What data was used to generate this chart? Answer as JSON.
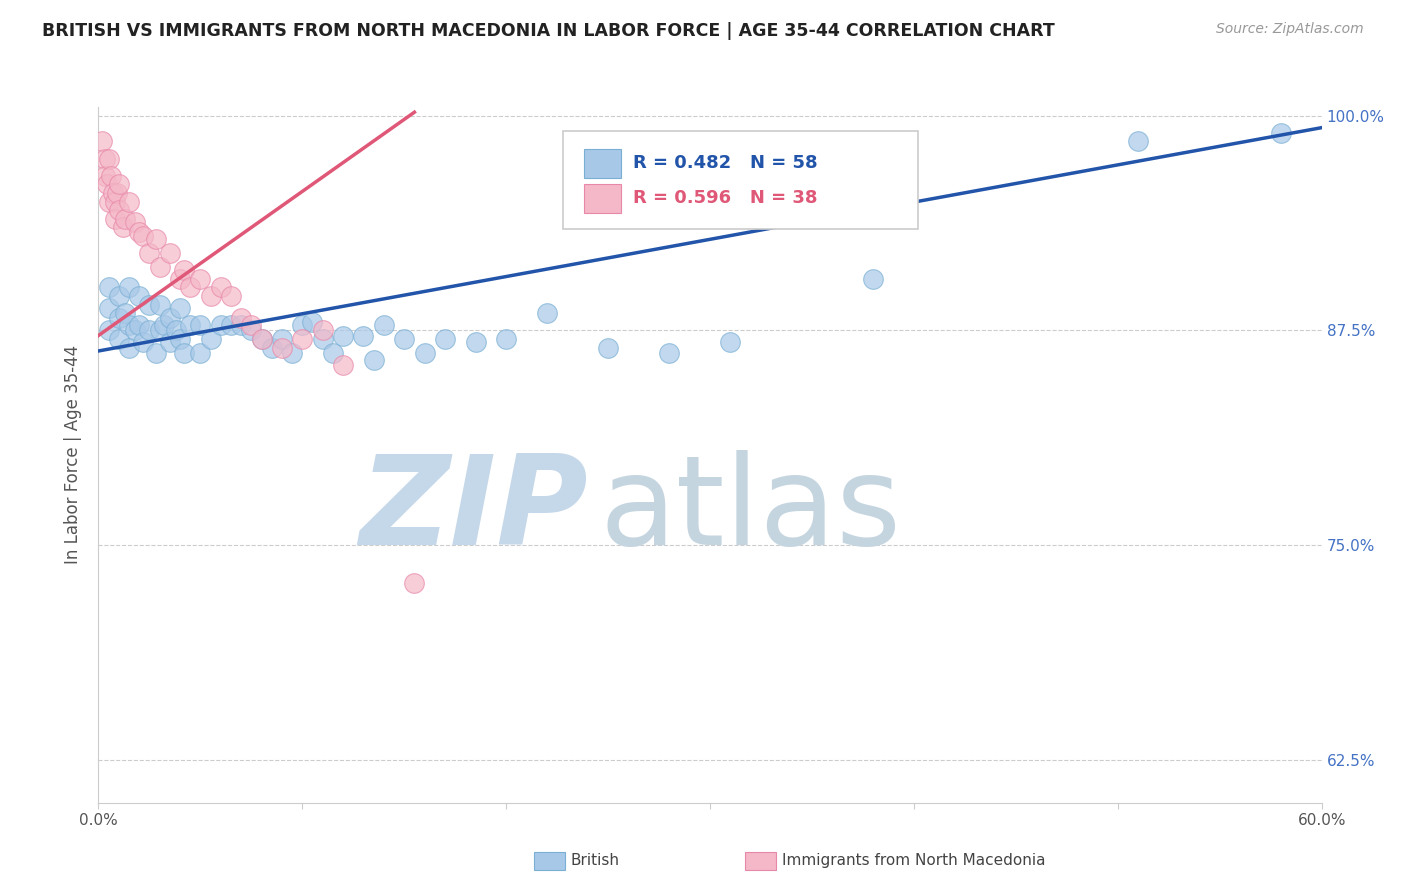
{
  "title": "BRITISH VS IMMIGRANTS FROM NORTH MACEDONIA IN LABOR FORCE | AGE 35-44 CORRELATION CHART",
  "source": "Source: ZipAtlas.com",
  "ylabel": "In Labor Force | Age 35-44",
  "xlim": [
    0.0,
    0.6
  ],
  "ylim": [
    0.6,
    1.005
  ],
  "xticks": [
    0.0,
    0.1,
    0.2,
    0.3,
    0.4,
    0.5,
    0.6
  ],
  "xtick_labels": [
    "0.0%",
    "",
    "",
    "",
    "",
    "",
    "60.0%"
  ],
  "ytick_positions": [
    0.625,
    0.75,
    0.875,
    1.0
  ],
  "ytick_labels_right": [
    "62.5%",
    "75.0%",
    "87.5%",
    "100.0%"
  ],
  "blue_R": 0.482,
  "blue_N": 58,
  "pink_R": 0.596,
  "pink_N": 38,
  "blue_color": "#a8c8e8",
  "blue_edge_color": "#7aafd4",
  "pink_color": "#f4b8c8",
  "pink_edge_color": "#e888a8",
  "blue_line_color": "#2255aa",
  "pink_line_color": "#e05878",
  "watermark_zip": "ZIP",
  "watermark_atlas": "atlas",
  "watermark_color_zip": "#c5d8ea",
  "watermark_color_atlas": "#c5d5e0",
  "legend_R_color": "#2255aa",
  "legend_pink_R_color": "#e05878",
  "blue_line_x0": 0.0,
  "blue_line_x1": 0.6,
  "blue_line_y0": 0.863,
  "blue_line_y1": 0.993,
  "pink_line_x0": 0.0,
  "pink_line_x1": 0.155,
  "pink_line_y0": 0.872,
  "pink_line_y1": 1.002,
  "blue_scatter_x": [
    0.005,
    0.005,
    0.005,
    0.01,
    0.01,
    0.01,
    0.013,
    0.015,
    0.015,
    0.015,
    0.018,
    0.02,
    0.02,
    0.022,
    0.025,
    0.025,
    0.028,
    0.03,
    0.03,
    0.032,
    0.035,
    0.035,
    0.038,
    0.04,
    0.04,
    0.042,
    0.045,
    0.05,
    0.05,
    0.055,
    0.06,
    0.065,
    0.07,
    0.075,
    0.08,
    0.085,
    0.09,
    0.095,
    0.1,
    0.105,
    0.11,
    0.115,
    0.12,
    0.13,
    0.135,
    0.14,
    0.15,
    0.16,
    0.17,
    0.185,
    0.2,
    0.22,
    0.25,
    0.28,
    0.31,
    0.38,
    0.51,
    0.58
  ],
  "blue_scatter_y": [
    0.9,
    0.888,
    0.875,
    0.895,
    0.882,
    0.87,
    0.885,
    0.9,
    0.878,
    0.865,
    0.875,
    0.895,
    0.878,
    0.868,
    0.89,
    0.875,
    0.862,
    0.89,
    0.875,
    0.878,
    0.882,
    0.868,
    0.875,
    0.888,
    0.87,
    0.862,
    0.878,
    0.878,
    0.862,
    0.87,
    0.878,
    0.878,
    0.878,
    0.875,
    0.87,
    0.865,
    0.87,
    0.862,
    0.878,
    0.88,
    0.87,
    0.862,
    0.872,
    0.872,
    0.858,
    0.878,
    0.87,
    0.862,
    0.87,
    0.868,
    0.87,
    0.885,
    0.865,
    0.862,
    0.868,
    0.905,
    0.985,
    0.99
  ],
  "pink_scatter_x": [
    0.002,
    0.003,
    0.003,
    0.004,
    0.005,
    0.005,
    0.006,
    0.007,
    0.008,
    0.008,
    0.009,
    0.01,
    0.01,
    0.012,
    0.013,
    0.015,
    0.018,
    0.02,
    0.022,
    0.025,
    0.028,
    0.03,
    0.035,
    0.04,
    0.042,
    0.045,
    0.05,
    0.055,
    0.06,
    0.065,
    0.07,
    0.075,
    0.08,
    0.09,
    0.1,
    0.11,
    0.12,
    0.155
  ],
  "pink_scatter_y": [
    0.985,
    0.975,
    0.965,
    0.96,
    0.975,
    0.95,
    0.965,
    0.955,
    0.95,
    0.94,
    0.955,
    0.96,
    0.945,
    0.935,
    0.94,
    0.95,
    0.938,
    0.932,
    0.93,
    0.92,
    0.928,
    0.912,
    0.92,
    0.905,
    0.91,
    0.9,
    0.905,
    0.895,
    0.9,
    0.895,
    0.882,
    0.878,
    0.87,
    0.865,
    0.87,
    0.875,
    0.855,
    0.728
  ]
}
